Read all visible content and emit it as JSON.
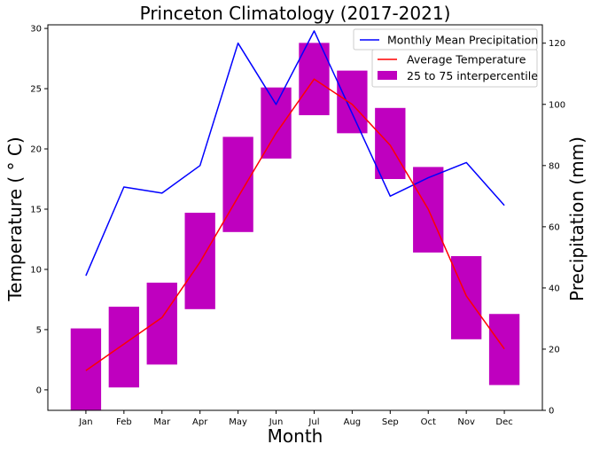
{
  "chart_data": {
    "type": "bar+line",
    "title": "Princeton Climatology (2017-2021)",
    "xlabel": "Month",
    "ylabel_left": "Temperature ( ° C)",
    "ylabel_right": "Precipitation (mm)",
    "categories": [
      "Jan",
      "Feb",
      "Mar",
      "Apr",
      "May",
      "Jun",
      "Jul",
      "Aug",
      "Sep",
      "Oct",
      "Nov",
      "Dec"
    ],
    "ylim_left": [
      -1.7,
      30.3
    ],
    "ylim_right": [
      0,
      126
    ],
    "yticks_left": [
      0,
      5,
      10,
      15,
      20,
      25,
      30
    ],
    "yticks_right": [
      0,
      20,
      40,
      60,
      80,
      100,
      120
    ],
    "series": [
      {
        "name": "Monthly Mean Precipitation",
        "kind": "line",
        "axis": "right",
        "color": "#0000ff",
        "values": [
          44,
          73,
          71,
          80,
          120,
          100,
          124,
          97,
          70,
          76,
          81,
          67
        ]
      },
      {
        "name": "Average Temperature",
        "kind": "line",
        "axis": "left",
        "color": "#ff0000",
        "values": [
          1.6,
          3.8,
          6.0,
          10.6,
          16.0,
          21.3,
          25.8,
          23.7,
          20.3,
          15.0,
          7.8,
          3.4
        ]
      },
      {
        "name": "25 to 75 interpercentile",
        "kind": "floating-bar",
        "axis": "left",
        "color": "#bf00bf",
        "low": [
          -1.7,
          0.2,
          2.1,
          6.7,
          13.1,
          19.2,
          22.8,
          21.3,
          17.5,
          11.4,
          4.2,
          0.4
        ],
        "high": [
          5.1,
          6.9,
          8.9,
          14.7,
          21.0,
          25.1,
          28.8,
          26.5,
          23.4,
          18.5,
          11.1,
          6.3
        ]
      }
    ],
    "legend_position": "top-right",
    "grid": false
  }
}
